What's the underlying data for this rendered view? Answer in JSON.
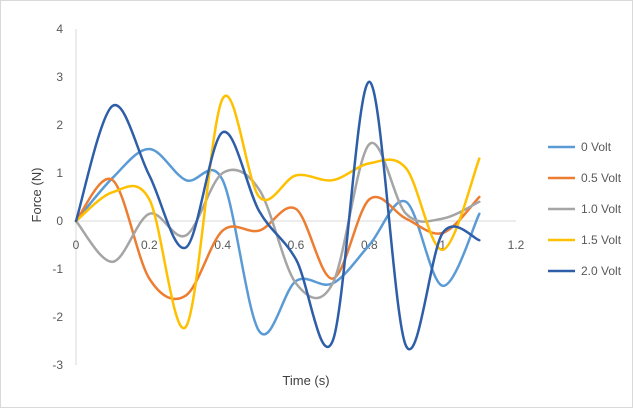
{
  "chart_data": {
    "type": "line",
    "smooth": true,
    "title": "",
    "xlabel": "Time (s)",
    "ylabel": "Force (N)",
    "xlim": [
      0,
      1.2
    ],
    "ylim": [
      -3,
      4
    ],
    "xticks": [
      0,
      0.2,
      0.4,
      0.6,
      0.8,
      1,
      1.2
    ],
    "xtick_labels": [
      "0",
      "0.2",
      "0.4",
      "0.6",
      "0.8",
      "1",
      "1.2"
    ],
    "yticks": [
      -3,
      -2,
      -1,
      0,
      1,
      2,
      3,
      4
    ],
    "ytick_labels": [
      "-3",
      "-2",
      "-1",
      "0",
      "1",
      "2",
      "3",
      "4"
    ],
    "grid": false,
    "legend_position": "right",
    "series": [
      {
        "name": "0 Volt",
        "color": "#5b9bd5",
        "x": [
          0,
          0.1,
          0.2,
          0.3,
          0.4,
          0.5,
          0.6,
          0.7,
          0.8,
          0.9,
          1.0,
          1.1
        ],
        "y": [
          0,
          0.9,
          1.5,
          0.85,
          0.85,
          -2.3,
          -1.25,
          -1.3,
          -0.5,
          0.4,
          -1.35,
          0.15
        ]
      },
      {
        "name": "0.5 Volt",
        "color": "#ed7d31",
        "x": [
          0,
          0.1,
          0.2,
          0.3,
          0.4,
          0.5,
          0.6,
          0.7,
          0.8,
          0.9,
          1.0,
          1.1
        ],
        "y": [
          0,
          0.85,
          -1.2,
          -1.55,
          -0.2,
          -0.2,
          0.25,
          -1.2,
          0.45,
          0.05,
          -0.25,
          0.5
        ]
      },
      {
        "name": "1.0 Volt",
        "color": "#a5a5a5",
        "x": [
          0,
          0.1,
          0.2,
          0.3,
          0.4,
          0.5,
          0.6,
          0.7,
          0.8,
          0.9,
          1.0,
          1.1
        ],
        "y": [
          0,
          -0.85,
          0.15,
          -0.3,
          1.0,
          0.65,
          -1.3,
          -1.3,
          1.6,
          0.15,
          0.05,
          0.4
        ]
      },
      {
        "name": "1.5 Volt",
        "color": "#ffc000",
        "x": [
          0,
          0.1,
          0.2,
          0.3,
          0.4,
          0.5,
          0.6,
          0.7,
          0.8,
          0.9,
          1.0,
          1.1
        ],
        "y": [
          0,
          0.6,
          0.45,
          -2.2,
          2.55,
          0.5,
          0.95,
          0.85,
          1.2,
          1.1,
          -0.6,
          1.3
        ]
      },
      {
        "name": "2.0 Volt",
        "color": "#2e5ea8",
        "x": [
          0,
          0.1,
          0.2,
          0.3,
          0.4,
          0.5,
          0.6,
          0.7,
          0.8,
          0.9,
          1.0,
          1.1
        ],
        "y": [
          0,
          2.4,
          0.95,
          -0.55,
          1.85,
          0.2,
          -0.8,
          -2.5,
          2.9,
          -2.6,
          -0.25,
          -0.4
        ]
      }
    ]
  }
}
